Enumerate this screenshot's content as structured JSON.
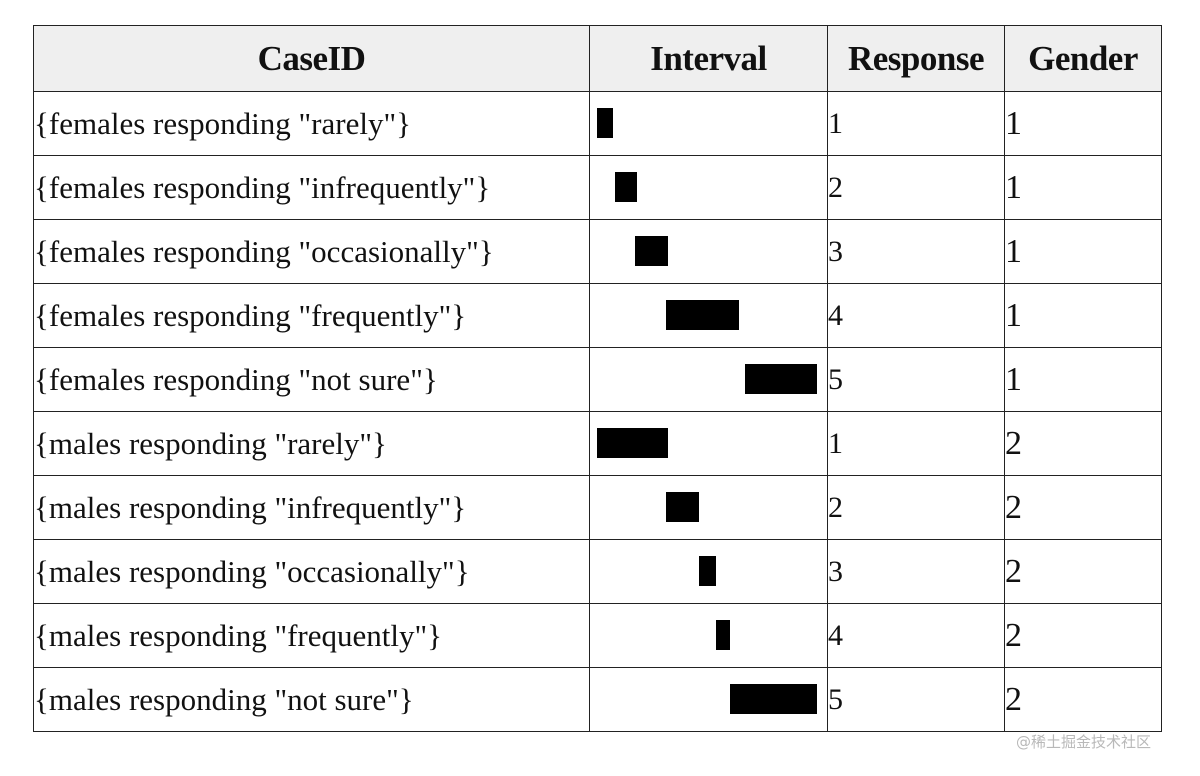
{
  "table": {
    "headers": [
      "CaseID",
      "Interval",
      "Response",
      "Gender"
    ],
    "rows": [
      {
        "case": "{females responding \"rarely\"}",
        "interval": {
          "start": 0.0,
          "end": 0.07
        },
        "response": "1",
        "gender": "1"
      },
      {
        "case": "{females responding \"infrequently\"}",
        "interval": {
          "start": 0.08,
          "end": 0.18
        },
        "response": "2",
        "gender": "1"
      },
      {
        "case": "{females responding \"occasionally\"}",
        "interval": {
          "start": 0.17,
          "end": 0.32
        },
        "response": "3",
        "gender": "1"
      },
      {
        "case": "{females responding \"frequently\"}",
        "interval": {
          "start": 0.31,
          "end": 0.64
        },
        "response": "4",
        "gender": "1"
      },
      {
        "case": "{females responding \"not sure\"}",
        "interval": {
          "start": 0.665,
          "end": 0.99
        },
        "response": "5",
        "gender": "1"
      },
      {
        "case": "{males responding \"rarely\"}",
        "interval": {
          "start": 0.0,
          "end": 0.32
        },
        "response": "1",
        "gender": "2"
      },
      {
        "case": "{males responding \"infrequently\"}",
        "interval": {
          "start": 0.31,
          "end": 0.46
        },
        "response": "2",
        "gender": "2"
      },
      {
        "case": "{males responding \"occasionally\"}",
        "interval": {
          "start": 0.46,
          "end": 0.535
        },
        "response": "3",
        "gender": "2"
      },
      {
        "case": "{males responding \"frequently\"}",
        "interval": {
          "start": 0.535,
          "end": 0.6
        },
        "response": "4",
        "gender": "2"
      },
      {
        "case": "{males responding \"not sure\"}",
        "interval": {
          "start": 0.6,
          "end": 0.99
        },
        "response": "5",
        "gender": "2"
      }
    ]
  },
  "bar_color": "#000000",
  "header_background": "#efefef",
  "watermark": "@稀土掘金技术社区"
}
